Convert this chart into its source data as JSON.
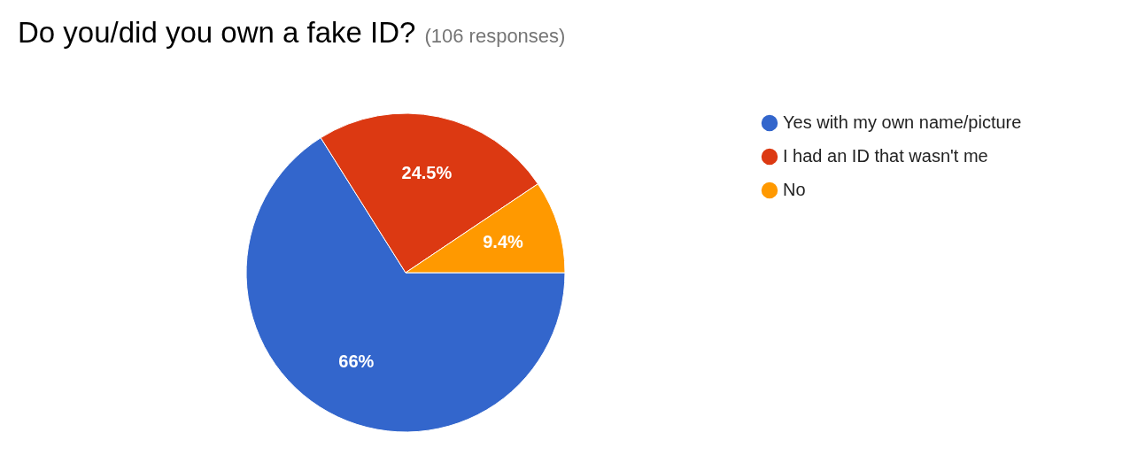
{
  "chart_data": {
    "type": "pie",
    "title": "Do you/did you own a fake ID?",
    "subtitle": "(106 responses)",
    "categories": [
      "Yes with my own name/picture",
      "I had an ID that wasn't me",
      "No"
    ],
    "values": [
      66,
      24.5,
      9.4
    ],
    "colors": [
      "#3366cc",
      "#dc3912",
      "#ff9900"
    ],
    "value_labels": [
      "66%",
      "24.5%",
      "9.4%"
    ],
    "legend": "top right"
  }
}
